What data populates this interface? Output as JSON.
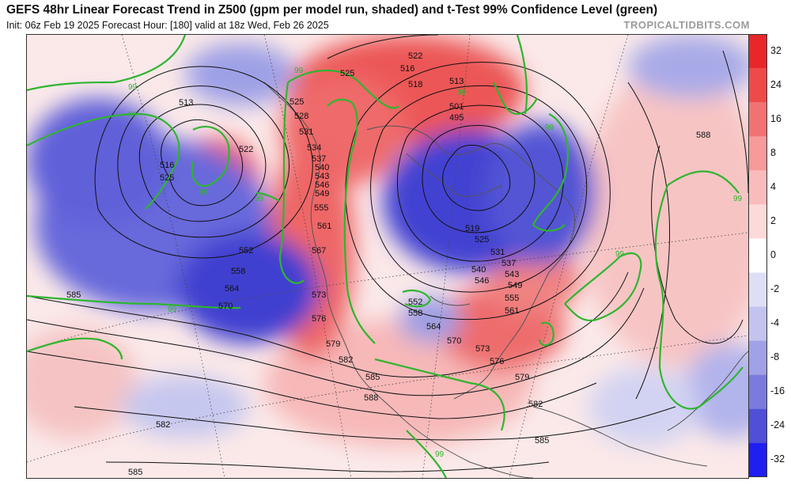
{
  "header": {
    "title": "GEFS 48hr Linear Forecast Trend in Z500 (gpm per model run, shaded) and t-Test 99% Confidence Level (green)",
    "subtitle": "Init: 06z Feb 19 2025   Forecast Hour: [180]   valid at 18z Wed, Feb 26 2025",
    "source": "TROPICALTIDBITS.COM"
  },
  "colorbar": {
    "labels": [
      "32",
      "24",
      "16",
      "8",
      "4",
      "2",
      "0",
      "-2",
      "-4",
      "-8",
      "-16",
      "-24",
      "-32"
    ],
    "colors": [
      "#e8272a",
      "#ee4a4a",
      "#f27272",
      "#f69a9a",
      "#f9bcbc",
      "#fcdada",
      "#ffffff",
      "#dedff5",
      "#c2c3ee",
      "#a0a1e6",
      "#7a7bdc",
      "#4f50d6",
      "#1f1ff0"
    ]
  },
  "contour_labels": {
    "pacific": [
      "513",
      "522",
      "516",
      "525",
      "552",
      "558",
      "564",
      "570",
      "585",
      "582",
      "585"
    ],
    "west": [
      "525",
      "528",
      "531",
      "534",
      "537",
      "540",
      "543",
      "546",
      "549",
      "555",
      "561",
      "567",
      "573",
      "576",
      "579",
      "582",
      "585",
      "588"
    ],
    "north": [
      "525",
      "522",
      "516",
      "518",
      "513",
      "501",
      "495",
      "99"
    ],
    "east": [
      "519",
      "525",
      "531",
      "537",
      "543",
      "540",
      "546",
      "549",
      "552",
      "555",
      "558",
      "561",
      "564",
      "570",
      "573",
      "576",
      "579",
      "582",
      "585"
    ],
    "atlantic": [
      "588"
    ],
    "significance": [
      "99",
      "99",
      "99",
      "99",
      "99",
      "99",
      "99",
      "99",
      "99",
      "99",
      "99"
    ]
  }
}
